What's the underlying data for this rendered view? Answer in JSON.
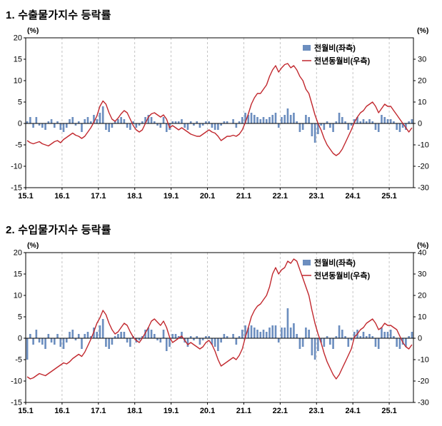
{
  "colors": {
    "bar": "#6c8ebf",
    "line": "#c1272d",
    "grid": "#b5b5b5",
    "axis": "#000000"
  },
  "chart_data": [
    {
      "type": "bar",
      "title": "1. 수출물가지수 등락률",
      "legend_position": "top-right",
      "grid": "vertical-dashed",
      "x_start": "2015-01",
      "x_end": "2025-08",
      "n_months": 128,
      "x_ticks": {
        "labels": [
          "15.1",
          "16.1",
          "17.1",
          "18.1",
          "19.1",
          "20.1",
          "21.1",
          "22.1",
          "23.1",
          "24.1",
          "25.1"
        ],
        "every_n_months": 12
      },
      "left_axis": {
        "unit": "(%)",
        "range": [
          -15,
          20
        ],
        "ticks": [
          20,
          15,
          10,
          5,
          0,
          -5,
          -10,
          -15
        ]
      },
      "right_axis": {
        "unit": "(%)",
        "range": [
          -30,
          40
        ],
        "ticks": [
          30,
          20,
          10,
          0,
          -10,
          -20,
          -30
        ]
      },
      "series": [
        {
          "name": "전월비(좌측)",
          "type": "bar",
          "axis": "left",
          "color": "#6c8ebf",
          "values": [
            0.5,
            1.5,
            -1.0,
            1.5,
            -0.5,
            -1.0,
            -1.5,
            0.5,
            1.0,
            -1.0,
            0.5,
            -1.5,
            -2.0,
            -1.0,
            1.0,
            1.5,
            -0.5,
            0.5,
            -2.0,
            1.0,
            1.5,
            0.5,
            2.0,
            1.0,
            2.5,
            4.0,
            -1.5,
            -2.0,
            -1.0,
            0.5,
            1.0,
            1.5,
            1.0,
            -1.0,
            -1.5,
            0.5,
            -1.0,
            -0.5,
            0.5,
            1.5,
            2.0,
            1.5,
            0.5,
            -0.5,
            -1.0,
            1.5,
            -2.0,
            -1.5,
            0.5,
            0.5,
            0.5,
            1.0,
            -1.0,
            -1.5,
            0.5,
            -0.5,
            0.5,
            -1.0,
            -0.5,
            0.5,
            0.5,
            -1.0,
            -1.5,
            -1.5,
            -0.5,
            0.5,
            0.5,
            0.0,
            1.0,
            -1.0,
            0.5,
            1.5,
            2.5,
            2.0,
            2.5,
            2.0,
            1.5,
            1.0,
            1.5,
            1.0,
            1.5,
            2.0,
            2.5,
            -1.0,
            1.5,
            2.0,
            3.5,
            2.0,
            2.5,
            0.5,
            -2.0,
            -1.5,
            2.0,
            1.5,
            -3.0,
            -4.5,
            -2.5,
            -0.5,
            -1.5,
            0.5,
            -1.0,
            -2.0,
            0.5,
            2.5,
            1.5,
            0.5,
            -1.5,
            -0.5,
            1.0,
            1.5,
            0.5,
            1.0,
            0.5,
            1.0,
            0.5,
            -1.5,
            -2.0,
            2.0,
            1.5,
            1.0,
            1.0,
            0.5,
            -1.5,
            -2.0,
            -1.0,
            -1.5,
            0.5,
            1.0
          ]
        },
        {
          "name": "전년동월비(우측)",
          "type": "line",
          "axis": "right",
          "color": "#c1272d",
          "values": [
            -8.0,
            -9.0,
            -9.5,
            -9.0,
            -8.5,
            -9.5,
            -10.0,
            -10.5,
            -9.5,
            -8.5,
            -8.0,
            -9.0,
            -7.5,
            -6.5,
            -5.5,
            -4.5,
            -5.5,
            -6.0,
            -7.0,
            -6.0,
            -4.0,
            -2.0,
            0.5,
            3.5,
            8.0,
            10.5,
            9.0,
            5.0,
            2.0,
            1.0,
            2.5,
            4.5,
            6.0,
            5.0,
            2.0,
            -1.0,
            -3.0,
            -4.0,
            -3.0,
            0.0,
            3.0,
            4.5,
            5.0,
            4.0,
            3.0,
            4.0,
            2.0,
            -2.0,
            -1.0,
            -2.0,
            -3.0,
            -2.0,
            -3.0,
            -4.0,
            -5.0,
            -5.5,
            -6.0,
            -6.0,
            -5.0,
            -4.0,
            -3.0,
            -4.0,
            -4.5,
            -6.0,
            -8.0,
            -7.0,
            -6.0,
            -6.0,
            -5.5,
            -6.0,
            -5.0,
            -3.0,
            0.5,
            4.5,
            9.0,
            12.0,
            14.0,
            14.0,
            16.0,
            18.0,
            22.0,
            25.0,
            27.0,
            24.0,
            26.0,
            27.5,
            28.0,
            26.0,
            27.0,
            25.0,
            22.0,
            20.0,
            16.0,
            14.0,
            9.0,
            4.0,
            0.0,
            -3.0,
            -7.0,
            -10.0,
            -12.0,
            -14.0,
            -15.0,
            -14.0,
            -12.0,
            -9.0,
            -6.0,
            -3.0,
            0.5,
            3.0,
            5.0,
            6.0,
            8.0,
            9.0,
            10.0,
            8.0,
            5.0,
            7.0,
            9.0,
            8.0,
            8.0,
            6.0,
            4.0,
            2.0,
            0.0,
            -2.0,
            -4.0,
            -2.0
          ]
        }
      ]
    },
    {
      "type": "bar",
      "title": "2. 수입물가지수 등락률",
      "legend_position": "top-right",
      "grid": "vertical-dashed",
      "x_start": "2015-01",
      "x_end": "2025-08",
      "n_months": 128,
      "x_ticks": {
        "labels": [
          "15.1",
          "16.1",
          "17.1",
          "18.1",
          "19.1",
          "20.1",
          "21.1",
          "22.1",
          "23.1",
          "24.1",
          "25.1"
        ],
        "every_n_months": 12
      },
      "left_axis": {
        "unit": "(%)",
        "range": [
          -15,
          20
        ],
        "ticks": [
          20,
          15,
          10,
          5,
          0,
          -5,
          -10,
          -15
        ]
      },
      "right_axis": {
        "unit": "(%)",
        "range": [
          -30,
          40
        ],
        "ticks": [
          40,
          30,
          20,
          10,
          0,
          -10,
          -20,
          -30
        ]
      },
      "series": [
        {
          "name": "전월비(좌측)",
          "type": "bar",
          "axis": "left",
          "color": "#6c8ebf",
          "values": [
            -5.0,
            1.0,
            -1.5,
            2.0,
            -1.0,
            -1.5,
            -2.5,
            1.0,
            -1.0,
            -1.5,
            1.0,
            -2.0,
            -2.5,
            -1.0,
            1.5,
            2.0,
            -0.5,
            1.0,
            -2.5,
            1.0,
            1.5,
            0.5,
            2.5,
            1.5,
            3.0,
            4.5,
            -2.0,
            -2.5,
            -1.5,
            0.5,
            1.0,
            1.5,
            1.5,
            -1.0,
            -2.0,
            0.5,
            -1.0,
            -0.5,
            0.5,
            2.0,
            2.5,
            2.0,
            1.0,
            -0.5,
            -1.0,
            2.0,
            -3.0,
            -2.0,
            1.0,
            1.0,
            0.5,
            1.5,
            -1.0,
            -2.0,
            0.5,
            -0.5,
            0.5,
            -1.5,
            -0.5,
            0.5,
            0.5,
            -1.5,
            -2.0,
            -3.0,
            -1.0,
            1.0,
            0.5,
            0.0,
            1.0,
            -1.5,
            0.5,
            2.0,
            3.0,
            2.5,
            3.0,
            2.5,
            2.0,
            1.5,
            2.0,
            1.5,
            2.5,
            3.0,
            3.0,
            -1.0,
            2.5,
            2.5,
            7.0,
            2.5,
            3.5,
            1.0,
            -2.5,
            -2.0,
            2.5,
            2.0,
            -4.0,
            -5.0,
            -3.0,
            -1.0,
            -2.0,
            0.5,
            -1.5,
            -2.5,
            0.5,
            3.0,
            2.0,
            0.5,
            -2.0,
            -0.5,
            1.5,
            2.0,
            0.5,
            1.5,
            0.5,
            1.0,
            0.5,
            -2.0,
            -2.5,
            2.5,
            1.5,
            1.5,
            2.0,
            0.5,
            -2.0,
            -2.5,
            -1.5,
            -2.0,
            0.5,
            1.5
          ]
        },
        {
          "name": "전년동월비(우측)",
          "type": "line",
          "axis": "right",
          "color": "#c1272d",
          "values": [
            -18.0,
            -19.0,
            -18.5,
            -17.5,
            -16.5,
            -17.0,
            -17.5,
            -16.5,
            -15.5,
            -14.5,
            -13.5,
            -12.5,
            -11.5,
            -12.0,
            -11.0,
            -9.5,
            -8.5,
            -7.5,
            -8.5,
            -6.5,
            -3.5,
            -0.5,
            3.0,
            7.0,
            9.5,
            13.0,
            11.0,
            7.0,
            4.0,
            2.0,
            3.0,
            5.0,
            7.0,
            6.0,
            3.0,
            0.5,
            -1.0,
            -2.0,
            0.0,
            2.5,
            5.0,
            8.0,
            9.0,
            7.5,
            6.0,
            8.0,
            5.0,
            0.5,
            -2.0,
            -1.0,
            0.0,
            1.0,
            -1.0,
            -3.0,
            -2.0,
            -3.0,
            -4.0,
            -5.0,
            -4.0,
            -2.0,
            -1.0,
            -3.0,
            -6.0,
            -10.0,
            -13.0,
            -12.0,
            -11.0,
            -10.0,
            -9.0,
            -10.0,
            -8.0,
            -5.0,
            0.5,
            5.0,
            10.0,
            13.0,
            15.0,
            16.0,
            18.0,
            20.0,
            24.0,
            30.0,
            33.0,
            30.0,
            32.0,
            33.0,
            36.0,
            35.0,
            37.0,
            36.0,
            32.0,
            28.0,
            24.0,
            20.0,
            13.0,
            7.0,
            2.0,
            -2.0,
            -7.0,
            -11.0,
            -14.0,
            -17.0,
            -19.0,
            -17.0,
            -14.0,
            -11.0,
            -8.0,
            -5.0,
            0.5,
            2.0,
            4.0,
            5.0,
            7.0,
            8.0,
            9.0,
            7.0,
            4.0,
            5.0,
            7.0,
            6.0,
            6.0,
            5.0,
            4.0,
            1.0,
            -2.0,
            -4.0,
            -5.0,
            -3.0
          ]
        }
      ]
    }
  ]
}
